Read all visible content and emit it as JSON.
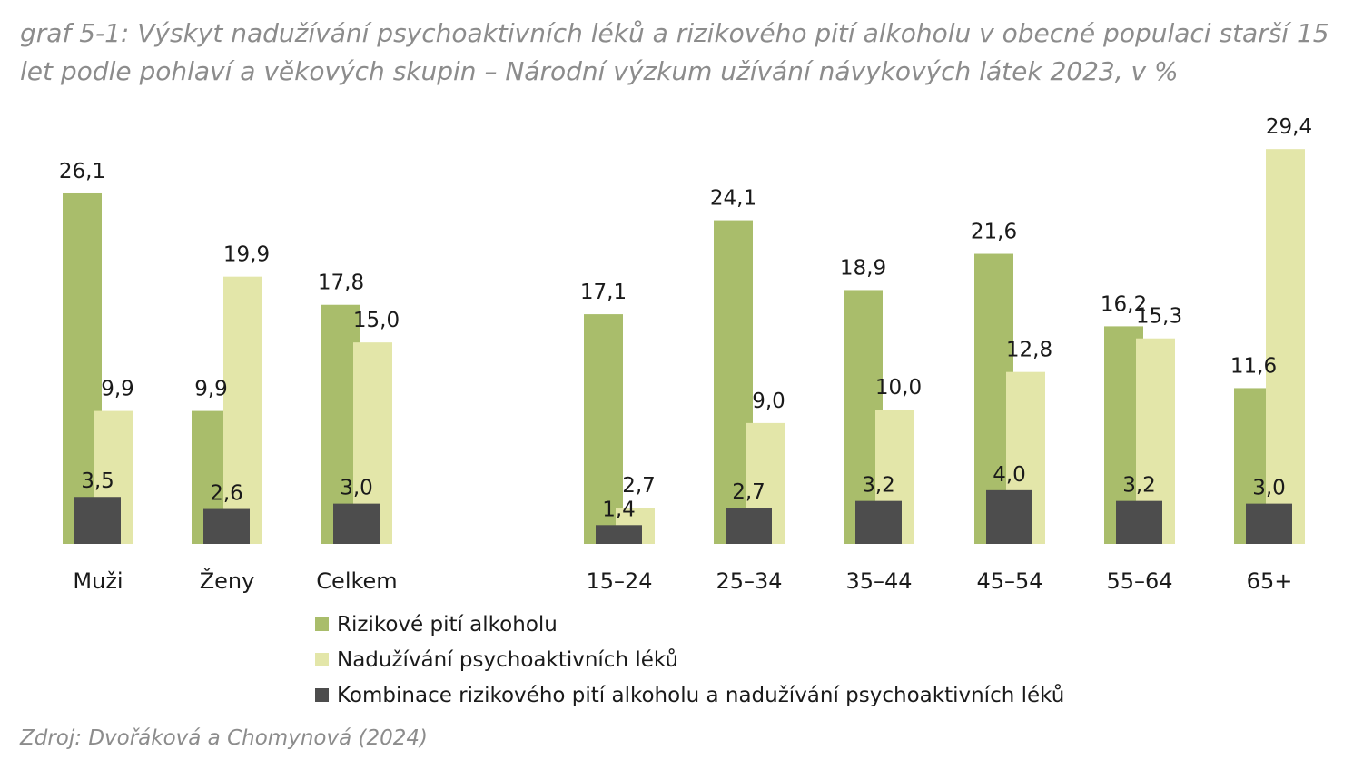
{
  "title": "graf 5-1: Výskyt nadužívání psychoaktivních léků a rizikového pití alkoholu v obecné populaci starší 15 let podle pohlaví a věkových skupin – Národní výzkum užívání návykových látek 2023, v %",
  "source": "Zdroj: Dvořáková a Chomynová (2024)",
  "chart_data": {
    "type": "bar",
    "categories": [
      "Muži",
      "Ženy",
      "Celkem",
      "15–24",
      "25–34",
      "35–44",
      "45–54",
      "55–64",
      "65+"
    ],
    "series": [
      {
        "name": "Rizikové pití alkoholu",
        "color": "#a9bd6b",
        "values": [
          26.1,
          9.9,
          17.8,
          17.1,
          24.1,
          18.9,
          21.6,
          16.2,
          11.6
        ],
        "labels": [
          "26,1",
          "9,9",
          "17,8",
          "17,1",
          "24,1",
          "18,9",
          "21,6",
          "16,2",
          "11,6"
        ]
      },
      {
        "name": "Nadužívání psychoaktivních léků",
        "color": "#e3e6a9",
        "values": [
          9.9,
          19.9,
          15.0,
          2.7,
          9.0,
          10.0,
          12.8,
          15.3,
          29.4
        ],
        "labels": [
          "9,9",
          "19,9",
          "15,0",
          "2,7",
          "9,0",
          "10,0",
          "12,8",
          "15,3",
          "29,4"
        ]
      },
      {
        "name": "Kombinace rizikového pití alkoholu a nadužívání psychoaktivních léků",
        "color": "#4d4d4d",
        "values": [
          3.5,
          2.6,
          3.0,
          1.4,
          2.7,
          3.2,
          4.0,
          3.2,
          3.0
        ],
        "labels": [
          "3,5",
          "2,6",
          "3,0",
          "1,4",
          "2,7",
          "3,2",
          "4,0",
          "3,2",
          "3,0"
        ]
      }
    ],
    "ylim": [
      0,
      30
    ],
    "grid": false,
    "legend_position": "bottom-left"
  }
}
